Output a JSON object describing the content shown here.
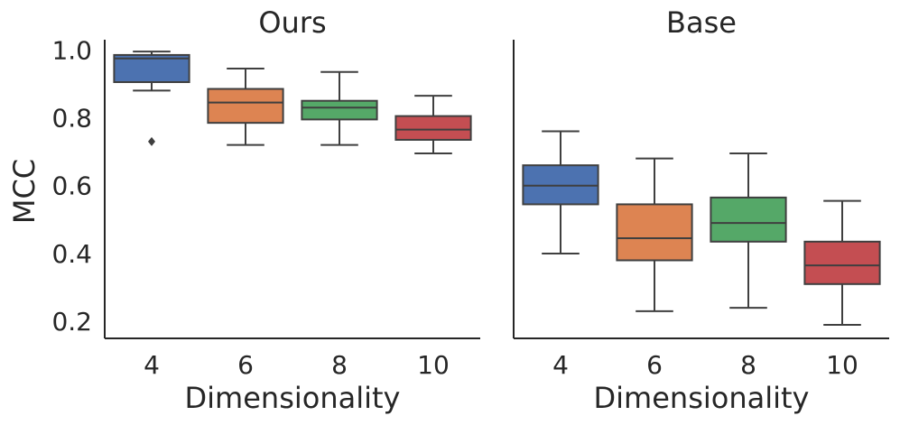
{
  "chart_data": {
    "type": "box",
    "ylabel": "MCC",
    "xlabel": "Dimensionality",
    "categories": [
      "4",
      "6",
      "8",
      "10"
    ],
    "colors": [
      "#4c72b0",
      "#dd8452",
      "#55a868",
      "#c44e52"
    ],
    "ylim": [
      0.15,
      1.03
    ],
    "yticks": [
      {
        "value": 0.2,
        "label": "0.2"
      },
      {
        "value": 0.4,
        "label": "0.4"
      },
      {
        "value": 0.6,
        "label": "0.6"
      },
      {
        "value": 0.8,
        "label": "0.8"
      },
      {
        "value": 1.0,
        "label": "1.0"
      }
    ],
    "panels": [
      {
        "title": "Ours",
        "boxes": [
          {
            "whislo": 0.88,
            "q1": 0.905,
            "med": 0.975,
            "q3": 0.985,
            "whishi": 0.995,
            "fliers": [
              0.73
            ]
          },
          {
            "whislo": 0.72,
            "q1": 0.785,
            "med": 0.845,
            "q3": 0.885,
            "whishi": 0.945,
            "fliers": []
          },
          {
            "whislo": 0.72,
            "q1": 0.795,
            "med": 0.83,
            "q3": 0.85,
            "whishi": 0.935,
            "fliers": []
          },
          {
            "whislo": 0.695,
            "q1": 0.735,
            "med": 0.765,
            "q3": 0.805,
            "whishi": 0.865,
            "fliers": []
          }
        ]
      },
      {
        "title": "Base",
        "boxes": [
          {
            "whislo": 0.4,
            "q1": 0.545,
            "med": 0.6,
            "q3": 0.66,
            "whishi": 0.76,
            "fliers": []
          },
          {
            "whislo": 0.23,
            "q1": 0.38,
            "med": 0.445,
            "q3": 0.545,
            "whishi": 0.68,
            "fliers": []
          },
          {
            "whislo": 0.24,
            "q1": 0.435,
            "med": 0.49,
            "q3": 0.565,
            "whishi": 0.695,
            "fliers": []
          },
          {
            "whislo": 0.19,
            "q1": 0.31,
            "med": 0.365,
            "q3": 0.435,
            "whishi": 0.555,
            "fliers": []
          }
        ]
      }
    ]
  }
}
